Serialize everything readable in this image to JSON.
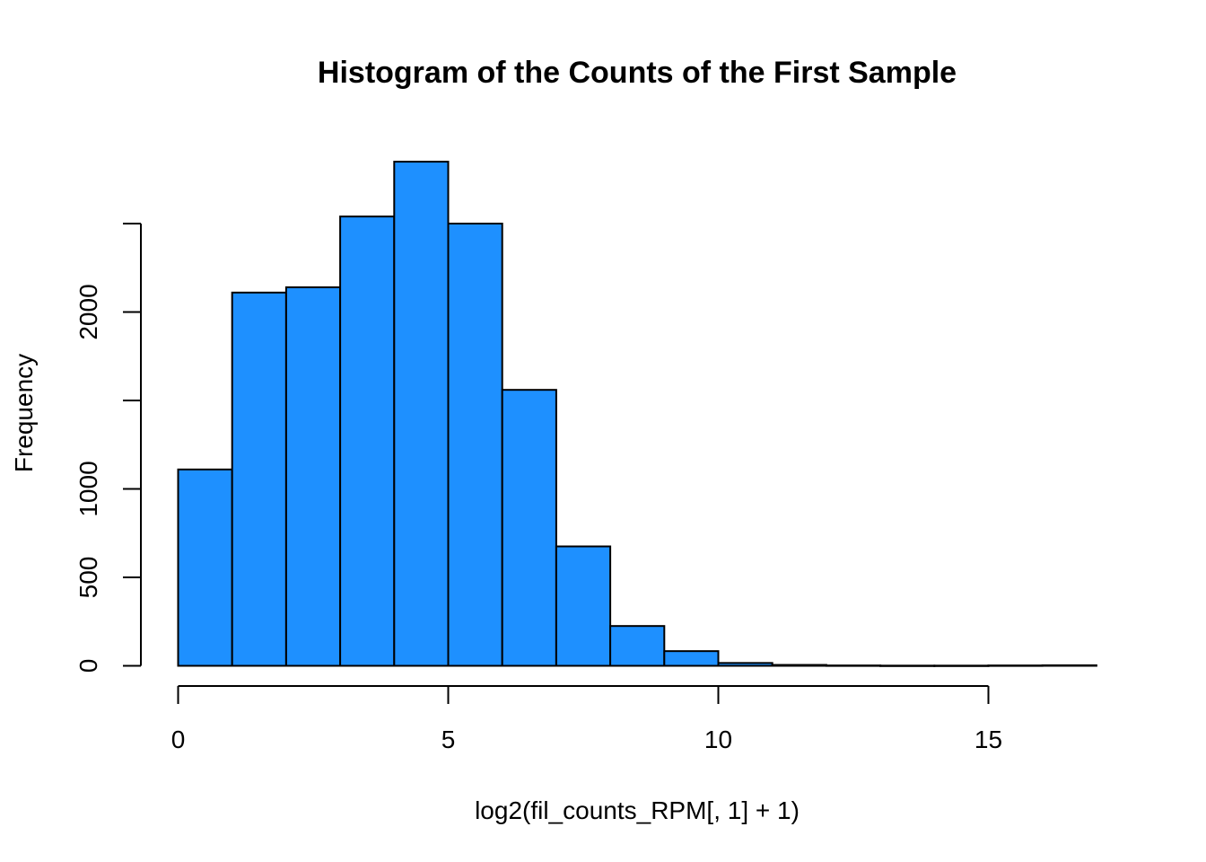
{
  "chart_data": {
    "type": "bar",
    "title": "Histogram of the Counts of the First Sample",
    "xlabel": "log2(fil_counts_RPM[, 1] + 1)",
    "ylabel": "Frequency",
    "bin_edges": [
      0,
      1,
      2,
      3,
      4,
      5,
      6,
      7,
      8,
      9,
      10,
      11,
      12,
      13,
      14,
      15,
      16,
      17
    ],
    "values": [
      1110,
      2110,
      2140,
      2540,
      2850,
      2500,
      1560,
      675,
      225,
      83,
      16,
      5,
      2,
      1,
      1,
      2,
      3
    ],
    "bar_color": "#1E90FF",
    "xlim": [
      0,
      17
    ],
    "ylim": [
      0,
      2500
    ],
    "x_ticks": [
      0,
      5,
      10,
      15
    ],
    "x_tick_labels": [
      "0",
      "5",
      "10",
      "15"
    ],
    "y_ticks": [
      0,
      500,
      1000,
      1500,
      2000,
      2500
    ],
    "y_tick_labels": [
      "0",
      "500",
      "1000",
      "",
      "2000",
      ""
    ],
    "grid": false,
    "legend": "none"
  }
}
